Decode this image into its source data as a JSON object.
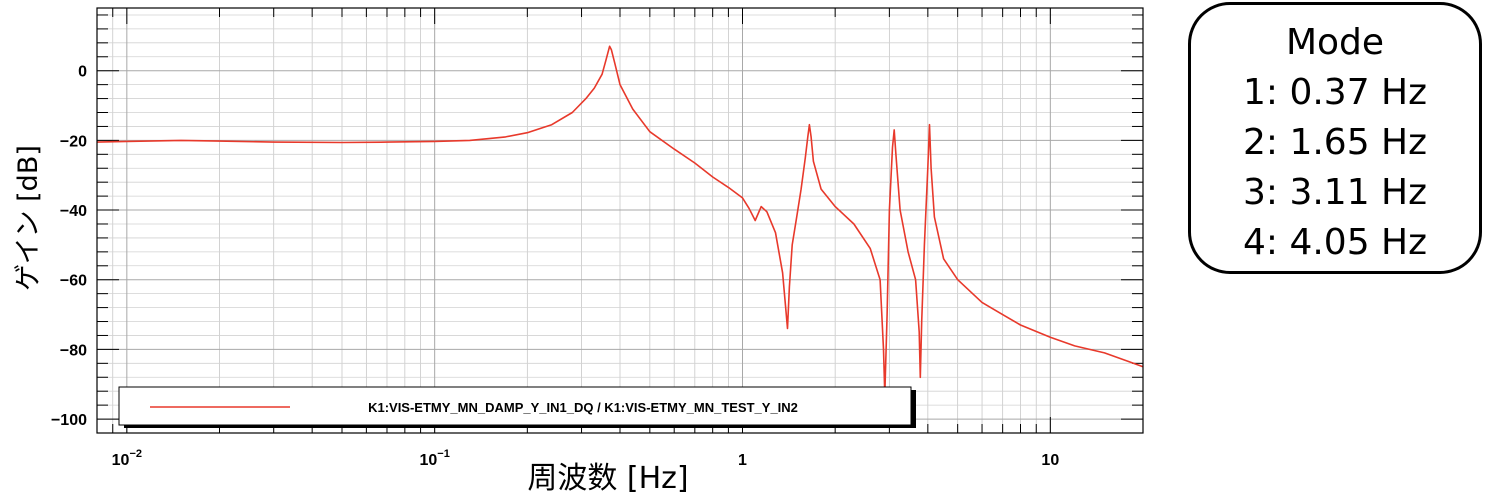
{
  "chart_data": {
    "type": "line",
    "title": "",
    "xlabel": "周波数 [Hz]",
    "ylabel": "ゲイン [dB]",
    "x_scale": "log",
    "xlim": [
      0.008,
      20
    ],
    "ylim": [
      -104,
      18
    ],
    "grid": true,
    "x_tick_labels": [
      {
        "value": 0.01,
        "base": "10",
        "exp": "−2"
      },
      {
        "value": 0.1,
        "base": "10",
        "exp": "−1"
      },
      {
        "value": 1,
        "base": "1",
        "exp": ""
      },
      {
        "value": 10,
        "base": "10",
        "exp": ""
      }
    ],
    "y_ticks": [
      0,
      -20,
      -40,
      -60,
      -80,
      -100
    ],
    "y_tick_labels": [
      "0",
      "−20",
      "−40",
      "−60",
      "−80",
      "−100"
    ],
    "legend_position": "bottom-left",
    "series": [
      {
        "name": "K1:VIS-ETMY_MN_DAMP_Y_IN1_DQ / K1:VIS-ETMY_MN_TEST_Y_IN2",
        "color": "#e8392b",
        "x": [
          0.008,
          0.01,
          0.015,
          0.02,
          0.03,
          0.05,
          0.07,
          0.1,
          0.13,
          0.17,
          0.2,
          0.24,
          0.28,
          0.31,
          0.33,
          0.35,
          0.36,
          0.37,
          0.375,
          0.385,
          0.4,
          0.44,
          0.5,
          0.6,
          0.7,
          0.8,
          0.9,
          1.0,
          1.05,
          1.1,
          1.15,
          1.2,
          1.28,
          1.35,
          1.4,
          1.42,
          1.45,
          1.5,
          1.55,
          1.6,
          1.63,
          1.65,
          1.67,
          1.7,
          1.8,
          2.0,
          2.3,
          2.6,
          2.8,
          2.87,
          2.9,
          2.95,
          3.0,
          3.07,
          3.11,
          3.15,
          3.25,
          3.45,
          3.65,
          3.75,
          3.78,
          3.82,
          3.9,
          4.0,
          4.05,
          4.1,
          4.2,
          4.5,
          5.0,
          6.0,
          7.0,
          8.0,
          10.0,
          12.0,
          15.0,
          18.0,
          20.0
        ],
        "y": [
          -20.5,
          -20.3,
          -20.0,
          -20.2,
          -20.5,
          -20.6,
          -20.5,
          -20.3,
          -20.0,
          -19.0,
          -17.8,
          -15.5,
          -12.0,
          -8.0,
          -5.0,
          -1.0,
          3.0,
          7.0,
          6.0,
          2.0,
          -4.0,
          -11.0,
          -17.5,
          -22.5,
          -26.5,
          -30.5,
          -33.5,
          -36.5,
          -39.5,
          -43.0,
          -39.0,
          -40.5,
          -46.5,
          -58.0,
          -74.0,
          -62.0,
          -50.0,
          -42.0,
          -34.0,
          -25.0,
          -19.0,
          -15.5,
          -19.0,
          -26.0,
          -34.0,
          -39.0,
          -44.0,
          -51.0,
          -60.0,
          -80.0,
          -93.0,
          -70.0,
          -40.0,
          -22.0,
          -17.0,
          -24.0,
          -40.0,
          -52.0,
          -60.0,
          -75.0,
          -88.0,
          -72.0,
          -50.0,
          -28.0,
          -15.5,
          -28.0,
          -42.0,
          -54.0,
          -60.0,
          -66.5,
          -70.0,
          -73.0,
          -76.5,
          -79.0,
          -81.0,
          -83.5,
          -85.0
        ]
      }
    ]
  },
  "mode_box": {
    "title": "Mode",
    "lines": [
      "1: 0.37 Hz",
      "2: 1.65 Hz",
      "3: 3.11 Hz",
      "4: 4.05 Hz"
    ]
  }
}
